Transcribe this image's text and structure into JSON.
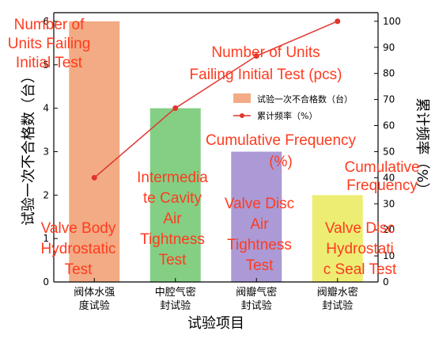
{
  "chart_data": {
    "type": "bar",
    "categories": [
      [
        "阀体水强",
        "度试验"
      ],
      [
        "中腔气密",
        "封试验"
      ],
      [
        "阀瓣气密",
        "封试验"
      ],
      [
        "阀瓣水密",
        "封试验"
      ]
    ],
    "xlabel": "试验项目",
    "ylabel": "试验一次不合格数（台）",
    "ylabel_right": "累计频率（%）",
    "ylim": [
      0,
      6.2
    ],
    "ylim_right": [
      0,
      103.3
    ],
    "yticks": [
      0,
      1,
      2,
      3,
      4,
      5,
      6
    ],
    "yticks_right": [
      0,
      10,
      20,
      30,
      40,
      50,
      60,
      70,
      80,
      90,
      100
    ],
    "series": [
      {
        "name": "试验一次不合格数（台）",
        "type": "bar",
        "values": [
          6,
          4,
          3,
          2
        ],
        "colors": [
          "#f2ab84",
          "#84cf84",
          "#ab9ad6",
          "#eded73"
        ]
      },
      {
        "name": "累计频率（%）",
        "type": "line",
        "axis": "right",
        "color": "#e0352e",
        "values": [
          40,
          66.7,
          86.7,
          100
        ]
      }
    ],
    "legend_position": "right-middle",
    "grid": false
  },
  "overlays": [
    [
      "Number of",
      "Units Failing",
      "Initial Test"
    ],
    [
      "Number of Units",
      "Failing Initial Test (pcs)"
    ],
    [
      "Cumulative Frequency",
      "(%)"
    ],
    [
      "Cumulative",
      "Frequency"
    ],
    [
      "Intermedia",
      "te Cavity",
      "Air",
      "Tightness",
      "Test"
    ],
    [
      "Valve Body",
      "Hydrostatic",
      "Test"
    ],
    [
      "Valve Disc",
      "Air",
      "Tightness",
      "Test"
    ],
    [
      "Valve Disc",
      "Hydrostati",
      "c Seal Test"
    ]
  ]
}
